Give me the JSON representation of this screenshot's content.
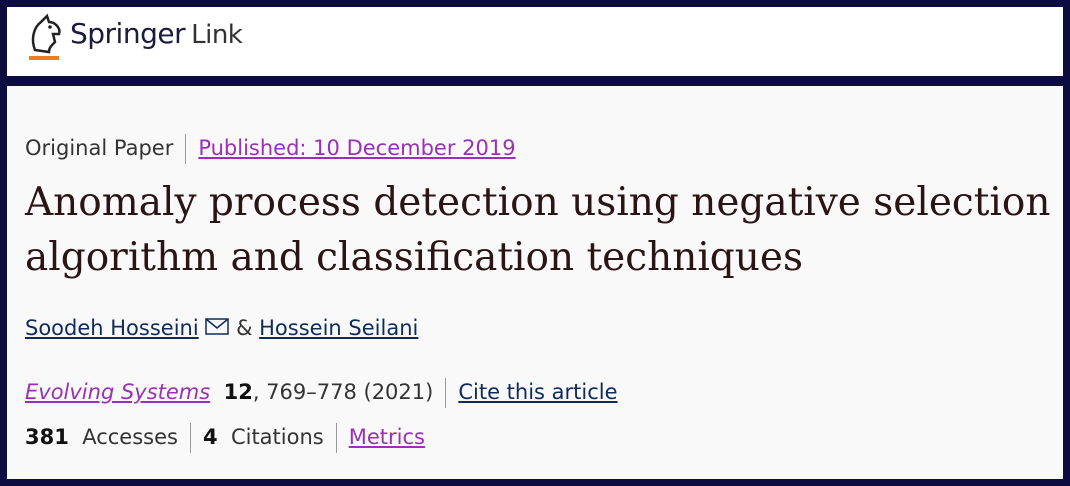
{
  "header": {
    "logo_brand": "Springer",
    "logo_product": "Link"
  },
  "article": {
    "type": "Original Paper",
    "published": "Published: 10 December 2019",
    "title_lines": [
      "Anomaly process detection using negative selection",
      "algorithm and classification techniques"
    ],
    "authors": [
      "Soodeh Hosseini",
      "Hossein Seilani"
    ],
    "author_separator": "&",
    "journal": "Evolving Systems",
    "volume": "12",
    "pages_year": ", 769–778 (2021)",
    "cite_link": "Cite this article",
    "accesses_count": "381",
    "accesses_label": "Accesses",
    "citations_count": "4",
    "citations_label": "Citations",
    "metrics_link": "Metrics"
  }
}
